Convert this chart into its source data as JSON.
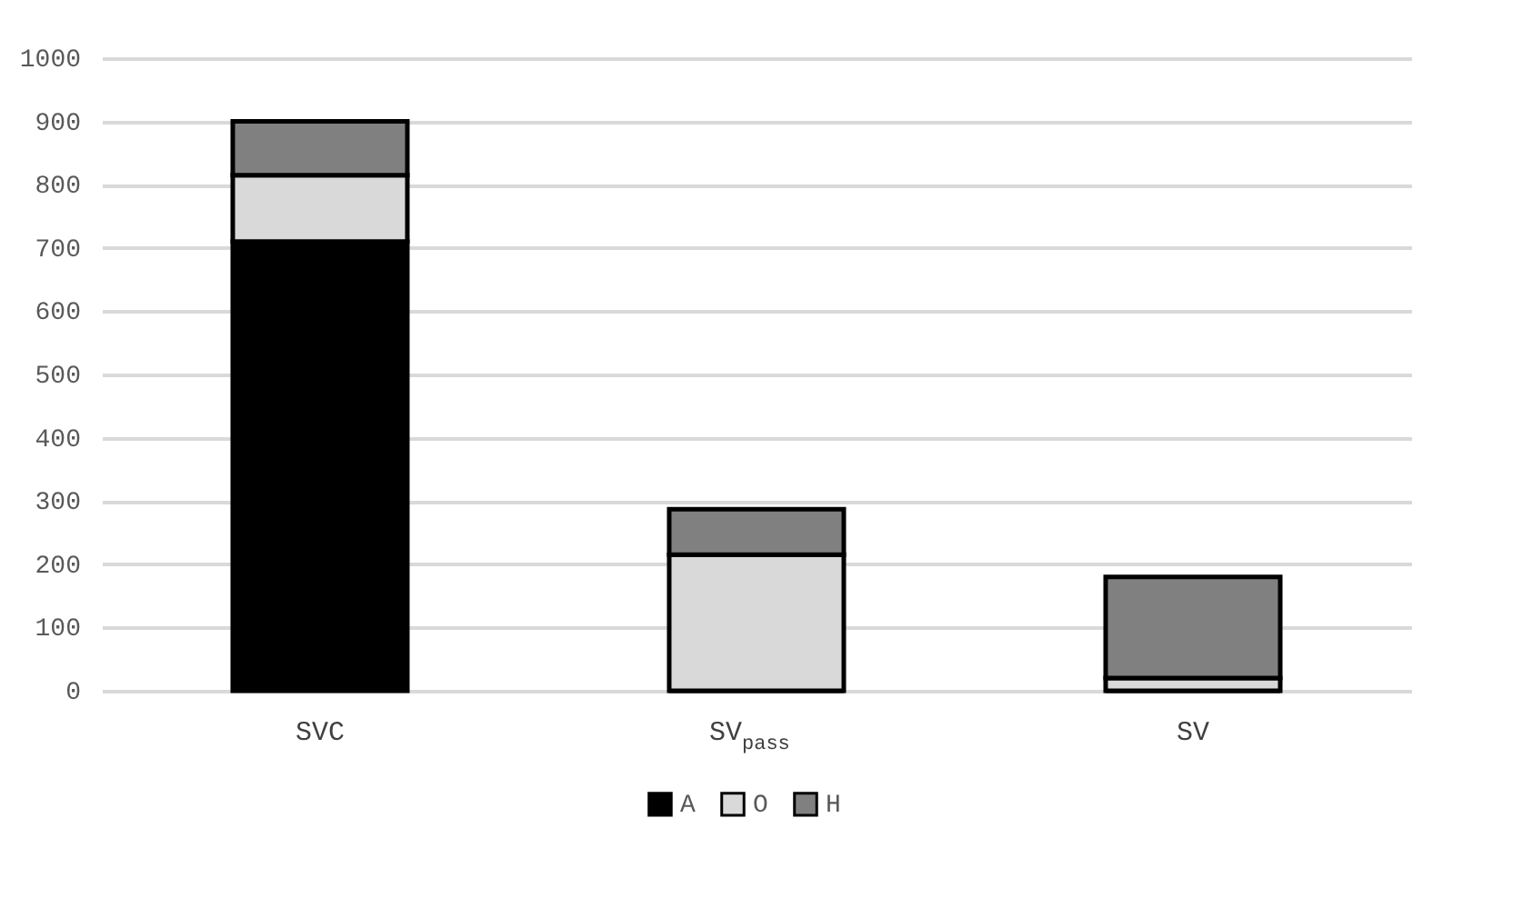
{
  "chart_data": {
    "type": "bar",
    "stacked": true,
    "categories": [
      "SVC",
      "SV$_{pass}$",
      "SV"
    ],
    "series": [
      {
        "name": "A",
        "color": "#000000",
        "values": [
          710,
          0,
          0
        ]
      },
      {
        "name": "O",
        "color": "#d9d9d9",
        "values": [
          105,
          215,
          20
        ]
      },
      {
        "name": "H",
        "color": "#808080",
        "values": [
          85,
          72,
          160
        ]
      }
    ],
    "ylim": [
      0,
      1000
    ],
    "yticks": [
      0,
      100,
      200,
      300,
      400,
      500,
      600,
      700,
      800,
      900,
      1000
    ],
    "grid": "y",
    "legend": "bottom"
  }
}
